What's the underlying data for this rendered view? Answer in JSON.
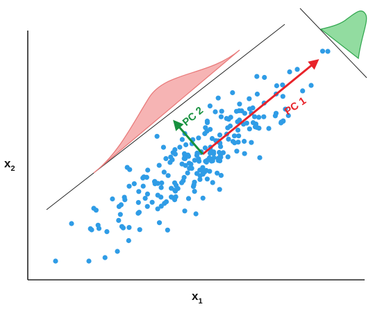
{
  "colors": {
    "points": "#2f9ce6",
    "pc1": "#e8232a",
    "pc2": "#17913f",
    "pc1_density_fill": "#f39b9b",
    "pc1_density_stroke": "#e97b7b",
    "pc2_density_fill": "#7fd68f",
    "pc2_density_stroke": "#35a852",
    "axes": "#222222"
  },
  "axes": {
    "x_label": "x",
    "x_sub": "1",
    "y_label": "x",
    "y_sub": "2"
  },
  "components": {
    "pc1_label": "PC 1",
    "pc2_label": "PC 2"
  },
  "scatter": {
    "count": 230,
    "mean": [
      0,
      0
    ],
    "pc1_spread": 1.0,
    "pc2_spread": 0.28
  }
}
